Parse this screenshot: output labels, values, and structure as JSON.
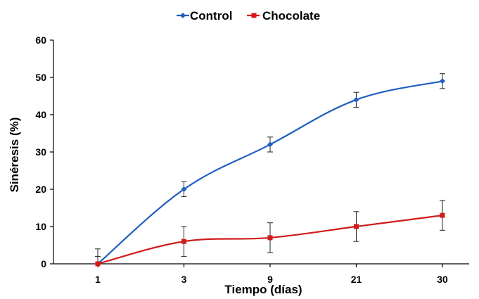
{
  "chart_data": {
    "type": "line",
    "title": "",
    "xlabel": "Tiempo (días)",
    "ylabel": "Sinéresis (%)",
    "categories": [
      "1",
      "3",
      "9",
      "21",
      "30"
    ],
    "ylim": [
      0,
      60
    ],
    "yticks": [
      0,
      10,
      20,
      30,
      40,
      50,
      60
    ],
    "grid": false,
    "legend": "top-center",
    "series": [
      {
        "name": "Control",
        "color": "#1f5fbf",
        "marker": "diamond",
        "values": [
          0,
          20,
          32,
          44,
          49
        ],
        "errors": [
          4,
          2,
          2,
          2,
          2
        ]
      },
      {
        "name": "Chocolate",
        "color": "#d01c1c",
        "marker": "square",
        "values": [
          0,
          6,
          7,
          10,
          13
        ],
        "errors": [
          2,
          4,
          4,
          4,
          4
        ]
      }
    ]
  }
}
